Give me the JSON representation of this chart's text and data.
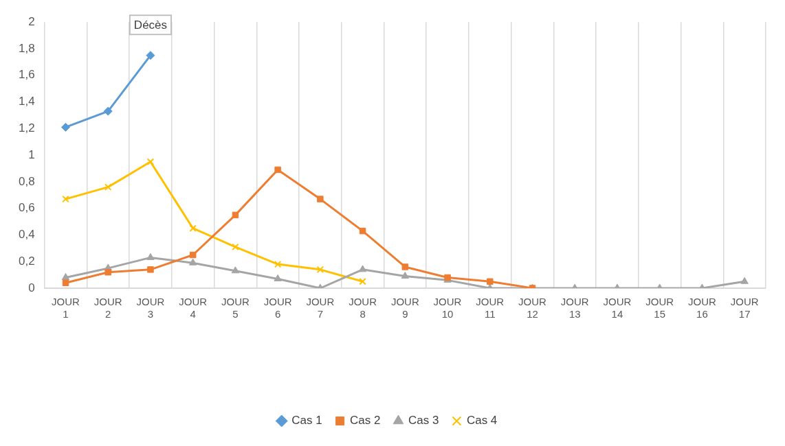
{
  "chart_data": {
    "type": "line",
    "categories": [
      "JOUR 1",
      "JOUR 2",
      "JOUR 3",
      "JOUR 4",
      "JOUR 5",
      "JOUR 6",
      "JOUR 7",
      "JOUR 8",
      "JOUR 9",
      "JOUR 10",
      "JOUR 11",
      "JOUR 12",
      "JOUR 13",
      "JOUR 14",
      "JOUR 15",
      "JOUR 16",
      "JOUR 17"
    ],
    "series": [
      {
        "name": "Cas 1",
        "color": "#5b9bd5",
        "marker": "diamond",
        "values": [
          1.21,
          1.33,
          1.75,
          null,
          null,
          null,
          null,
          null,
          null,
          null,
          null,
          null,
          null,
          null,
          null,
          null,
          null
        ]
      },
      {
        "name": "Cas 2",
        "color": "#ed7d31",
        "marker": "square",
        "values": [
          0.04,
          0.12,
          0.14,
          0.25,
          0.55,
          0.89,
          0.67,
          0.43,
          0.16,
          0.08,
          0.05,
          0,
          null,
          null,
          null,
          null,
          null
        ]
      },
      {
        "name": "Cas 3",
        "color": "#a5a5a5",
        "marker": "triangle",
        "values": [
          0.08,
          0.15,
          0.23,
          0.19,
          0.13,
          0.07,
          0,
          0.14,
          0.09,
          0.06,
          0,
          0,
          0,
          0,
          0,
          0,
          0.05
        ]
      },
      {
        "name": "Cas 4",
        "color": "#ffc000",
        "marker": "cross",
        "values": [
          0.67,
          0.76,
          0.95,
          0.45,
          0.31,
          0.18,
          0.14,
          0.05,
          null,
          null,
          null,
          null,
          null,
          null,
          null,
          null,
          null
        ]
      }
    ],
    "ylim": [
      0,
      2
    ],
    "yticks": [
      0,
      {
        "value": 0.2,
        "label": "0,2"
      },
      {
        "value": 0.4,
        "label": "0,4"
      },
      {
        "value": 0.6,
        "label": "0,6"
      },
      {
        "value": 0.8,
        "label": "0,8"
      },
      1,
      {
        "value": 1.2,
        "label": "1,2"
      },
      {
        "value": 1.4,
        "label": "1,4"
      },
      {
        "value": 1.6,
        "label": "1,6"
      },
      {
        "value": 1.8,
        "label": "1,8"
      },
      2
    ],
    "annotations": [
      "Décès"
    ],
    "grid": "x",
    "legend": "bottom",
    "line_style": "solid"
  }
}
